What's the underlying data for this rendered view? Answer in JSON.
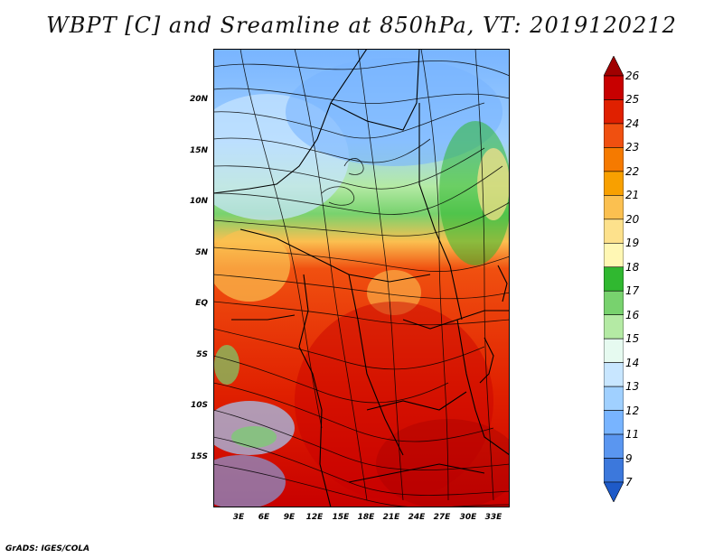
{
  "title": "WBPT [C] and Sreamline at 850hPa, VT: 2019120212",
  "credit": "GrADS: IGES/COLA",
  "map": {
    "lat_ticks": [
      "20N",
      "15N",
      "10N",
      "5N",
      "EQ",
      "5S",
      "10S",
      "15S"
    ],
    "lon_ticks": [
      "3E",
      "6E",
      "9E",
      "12E",
      "15E",
      "18E",
      "21E",
      "24E",
      "27E",
      "30E",
      "33E"
    ],
    "lon_range": [
      0,
      35
    ],
    "lat_range": [
      -20,
      25
    ]
  },
  "colorbar": {
    "labels": [
      "26",
      "25",
      "24",
      "23",
      "22",
      "21",
      "20",
      "19",
      "18",
      "17",
      "16",
      "15",
      "14",
      "13",
      "12",
      "11",
      "9",
      "7"
    ],
    "colors": [
      "#a00000",
      "#c80000",
      "#e02000",
      "#f05010",
      "#f57a00",
      "#f8a000",
      "#fbc050",
      "#fde18c",
      "#fff7b4",
      "#30b830",
      "#78d26e",
      "#b4eaa4",
      "#e6faf0",
      "#c8e6ff",
      "#a0d0ff",
      "#78b4ff",
      "#5a96f0",
      "#3c78dc",
      "#1e5ac8"
    ]
  }
}
